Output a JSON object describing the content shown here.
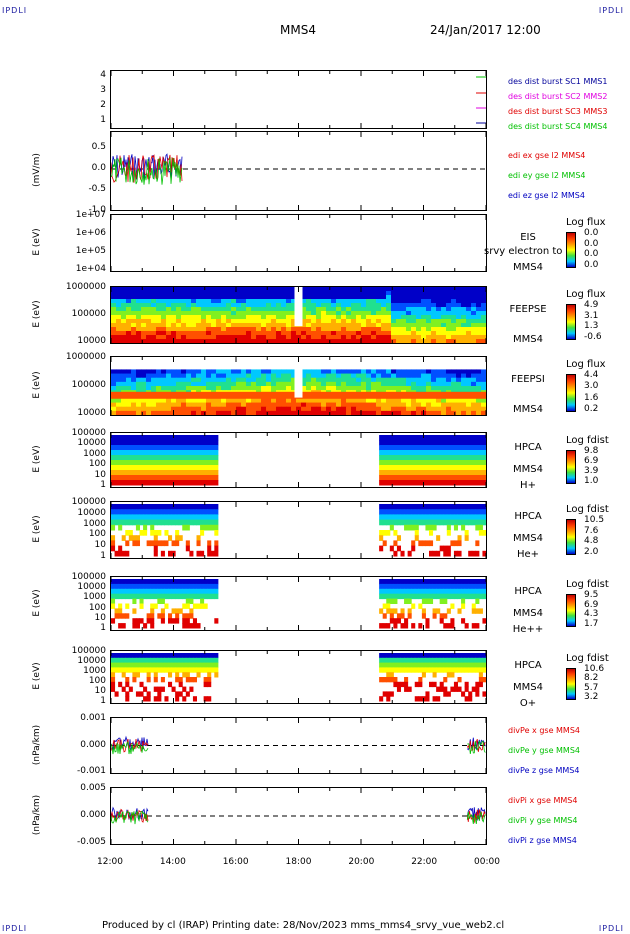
{
  "corners": {
    "tl": "IPDLI",
    "tr": "IPDLI",
    "bl": "IPDLI",
    "br": "IPDLI"
  },
  "header": {
    "spacecraft": "MMS4",
    "date": "24/Jan/2017 12:00"
  },
  "xaxis": {
    "ticks": [
      "12:00",
      "14:00",
      "16:00",
      "18:00",
      "20:00",
      "22:00",
      "00:00"
    ]
  },
  "footer": {
    "text": "Produced by cl (IRAP)   Printing date: 28/Nov/2023   mms_mms4_srvy_vue_web2.cl"
  },
  "colors": {
    "red": "#e00000",
    "green": "#00c000",
    "blue": "#0000c0",
    "magenta": "#e000e0",
    "darkblue": "#00009a"
  },
  "chart_data": [
    {
      "type": "line",
      "ylabel": "",
      "yticks": [
        "4",
        "3",
        "2",
        "1"
      ],
      "ylim": [
        0.5,
        4.5
      ],
      "legend": [
        "des dist burst SC1 MMS1",
        "des dist burst SC2 MMS2",
        "des dist burst SC3 MMS3",
        "des dist burst SC4 MMS4"
      ]
    },
    {
      "type": "line",
      "ylabel": "(mV/m)",
      "yticks": [
        "0.5",
        "0.0",
        "-0.5",
        "-1.0"
      ],
      "ylim": [
        -1.0,
        0.9
      ],
      "legend": [
        "edi ex gse l2 MMS4",
        "edi ey gse l2 MMS4",
        "edi ez gse l2 MMS4"
      ]
    },
    {
      "type": "heatmap",
      "ylabel": "E (eV)",
      "yticks": [
        "1e+07",
        "1e+06",
        "1e+05",
        "1e+04"
      ],
      "instrument": [
        "EIS",
        "MMS4"
      ],
      "overlay": "srvy electron to",
      "cb_title": "Log flux",
      "cb_values": [
        "0.0",
        "0.0",
        "0.0",
        "0.0"
      ]
    },
    {
      "type": "heatmap",
      "ylabel": "E (eV)",
      "yticks": [
        "1000000",
        "100000",
        "10000"
      ],
      "instrument": [
        "FEEPSE",
        "MMS4"
      ],
      "cb_title": "Log flux",
      "cb_values": [
        "4.9",
        "3.1",
        "1.3",
        "-0.6"
      ]
    },
    {
      "type": "heatmap",
      "ylabel": "E (eV)",
      "yticks": [
        "1000000",
        "100000",
        "10000"
      ],
      "instrument": [
        "FEEPSI",
        "MMS4"
      ],
      "cb_title": "Log flux",
      "cb_values": [
        "4.4",
        "3.0",
        "1.6",
        "0.2"
      ]
    },
    {
      "type": "heatmap",
      "ylabel": "E (eV)",
      "yticks": [
        "100000",
        "10000",
        "1000",
        "100",
        "10",
        "1"
      ],
      "instrument": [
        "HPCA",
        "MMS4",
        "H+"
      ],
      "cb_title": "Log fdist",
      "cb_values": [
        "9.8",
        "6.9",
        "3.9",
        "1.0"
      ]
    },
    {
      "type": "heatmap",
      "ylabel": "E (eV)",
      "yticks": [
        "100000",
        "10000",
        "1000",
        "100",
        "10",
        "1"
      ],
      "instrument": [
        "HPCA",
        "MMS4",
        "He+"
      ],
      "cb_title": "Log fdist",
      "cb_values": [
        "10.5",
        "7.6",
        "4.8",
        "2.0"
      ]
    },
    {
      "type": "heatmap",
      "ylabel": "E (eV)",
      "yticks": [
        "100000",
        "10000",
        "1000",
        "100",
        "10",
        "1"
      ],
      "instrument": [
        "HPCA",
        "MMS4",
        "He++"
      ],
      "cb_title": "Log fdist",
      "cb_values": [
        "9.5",
        "6.9",
        "4.3",
        "1.7"
      ]
    },
    {
      "type": "heatmap",
      "ylabel": "E (eV)",
      "yticks": [
        "100000",
        "10000",
        "1000",
        "100",
        "10",
        "1"
      ],
      "instrument": [
        "HPCA",
        "MMS4",
        "O+"
      ],
      "cb_title": "Log fdist",
      "cb_values": [
        "10.6",
        "8.2",
        "5.7",
        "3.2"
      ]
    },
    {
      "type": "line",
      "ylabel": "(nPa/km)",
      "yticks": [
        "0.001",
        "0.000",
        "-0.001"
      ],
      "legend": [
        "divPe x gse MMS4",
        "divPe y gse MMS4",
        "divPe z gse MMS4"
      ]
    },
    {
      "type": "line",
      "ylabel": "(nPa/km)",
      "yticks": [
        "0.005",
        "0.000",
        "-0.005"
      ],
      "legend": [
        "divPi x gse MMS4",
        "divPi y gse MMS4",
        "divPi z gse MMS4"
      ]
    }
  ]
}
